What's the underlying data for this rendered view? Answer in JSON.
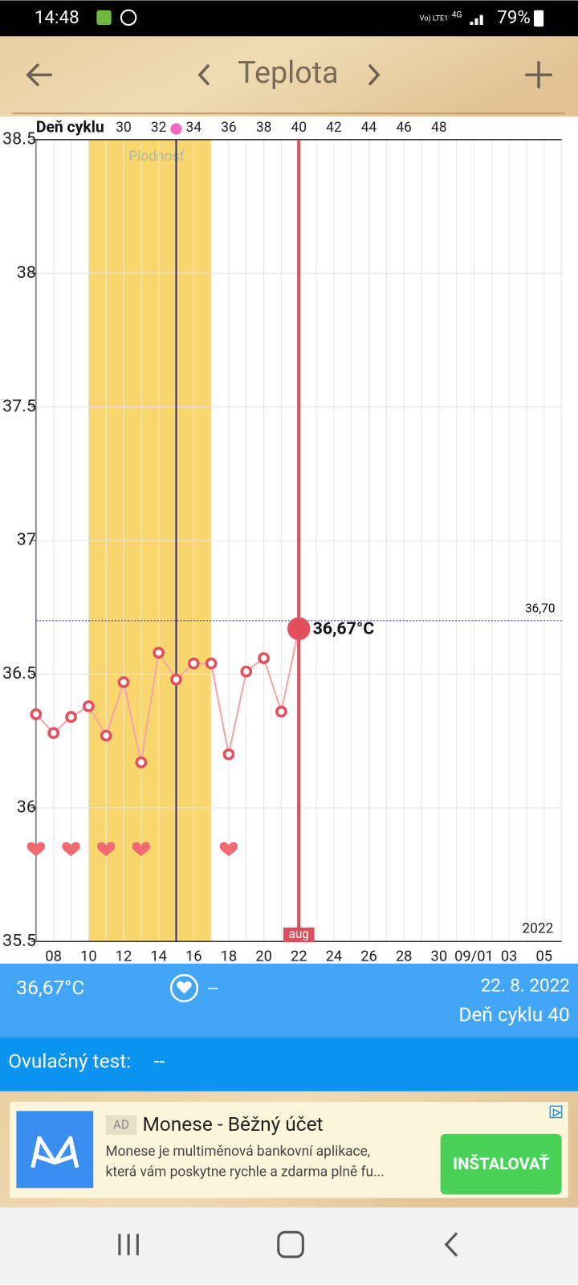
{
  "status": {
    "time": "14:48",
    "network": "Vo) LTE1",
    "signal": "4G",
    "battery": "79%"
  },
  "header": {
    "title": "Teplota"
  },
  "chart_data": {
    "type": "line",
    "x2_title": "Deň cyklu",
    "categories": [
      null,
      "08",
      null,
      "10",
      null,
      "12",
      null,
      "14",
      null,
      "16",
      null,
      "18",
      null,
      "20",
      null,
      "22",
      null,
      "24",
      null,
      "26",
      null,
      "28",
      null,
      "30",
      null,
      "09/01",
      null,
      "03",
      null,
      "05",
      null
    ],
    "series": [
      {
        "color": "#f4a3a8",
        "marker_color": "#e2505d",
        "values": [
          36.35,
          36.28,
          36.34,
          36.38,
          36.27,
          36.47,
          36.17,
          36.58,
          36.48,
          36.54,
          36.54,
          36.2,
          36.51,
          36.56,
          36.36,
          36.67,
          null,
          null,
          null,
          null,
          null,
          null,
          null,
          null,
          null,
          null,
          null,
          null,
          null,
          null,
          null
        ]
      }
    ],
    "ylim": [
      35.5,
      38.5
    ],
    "yticks": [
      35.5,
      36,
      36.5,
      37,
      37.5,
      38,
      38.5
    ],
    "grid": true,
    "x2lim": [
      25,
      55
    ],
    "x2ticks": [
      30,
      32,
      34,
      36,
      38,
      40,
      42,
      44,
      46,
      48
    ],
    "fertile_label": "Plodnosť",
    "fertile_range": [
      28,
      35
    ],
    "fertile_color": "#f9d76e",
    "ovulation_day": 33,
    "intercourse_days": [
      25,
      27,
      29,
      31,
      36
    ],
    "selected_day": 40,
    "selected_label": "36,67°C",
    "month_label": "aug",
    "year_label": "2022",
    "reference": {
      "value": 36.7,
      "label": "36,70"
    }
  },
  "panel": {
    "temperature": "36,67°C",
    "heart": "--",
    "date": "22. 8. 2022",
    "cycle_day": "Deň cyklu 40",
    "ovulation_test_label": "Ovulačný test:",
    "ovulation_test_value": "--"
  },
  "ad": {
    "badge": "AD",
    "title": "Monese - Běžný účet",
    "line1": "Monese je multiměnová bankovní aplikace,",
    "line2": "která vám poskytne rychle a zdarma plně fu...",
    "button": "INŠTALOVAŤ"
  }
}
